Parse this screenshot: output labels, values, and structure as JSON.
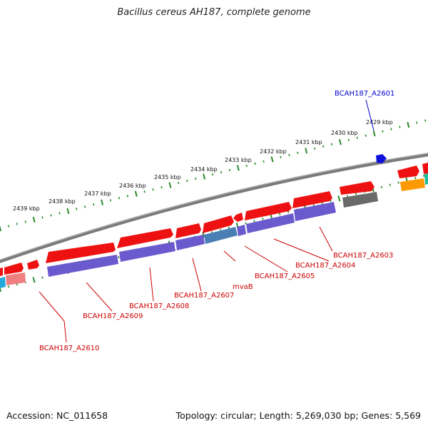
{
  "title": "Bacillus cereus AH187, complete genome",
  "footer": {
    "accession": "Accession: NC_011658",
    "summary": "Topology: circular; Length: 5,269,030 bp; Genes: 5,569"
  },
  "tick_labels": [
    "2429 kbp",
    "2430 kbp",
    "2431 kbp",
    "2432 kbp",
    "2433 kbp",
    "2434 kbp",
    "2435 kbp",
    "2436 kbp",
    "2437 kbp",
    "2438 kbp",
    "2439 kbp"
  ],
  "gene_labels": [
    {
      "text": "BCAH187_A2601",
      "color": "#0000cc"
    },
    {
      "text": "BCAH187_A2603",
      "color": "#cc0000"
    },
    {
      "text": "BCAH187_A2604",
      "color": "#cc0000"
    },
    {
      "text": "BCAH187_A2605",
      "color": "#cc0000"
    },
    {
      "text": "mvaB",
      "color": "#cc0000"
    },
    {
      "text": "BCAH187_A2607",
      "color": "#cc0000"
    },
    {
      "text": "BCAH187_A2608",
      "color": "#cc0000"
    },
    {
      "text": "BCAH187_A2609",
      "color": "#cc0000"
    },
    {
      "text": "BCAH187_A2610",
      "color": "#cc0000"
    }
  ],
  "colors": {
    "backbone": "#7a7a7a",
    "tick": "#2a8a2a",
    "gene_red": "#ee1111",
    "protein_purple": "#6a5acd",
    "gene_blue": "#1010dd",
    "gene_grey": "#6a6a6a",
    "gene_orange": "#ff9900",
    "gene_teal": "#22bb99"
  }
}
